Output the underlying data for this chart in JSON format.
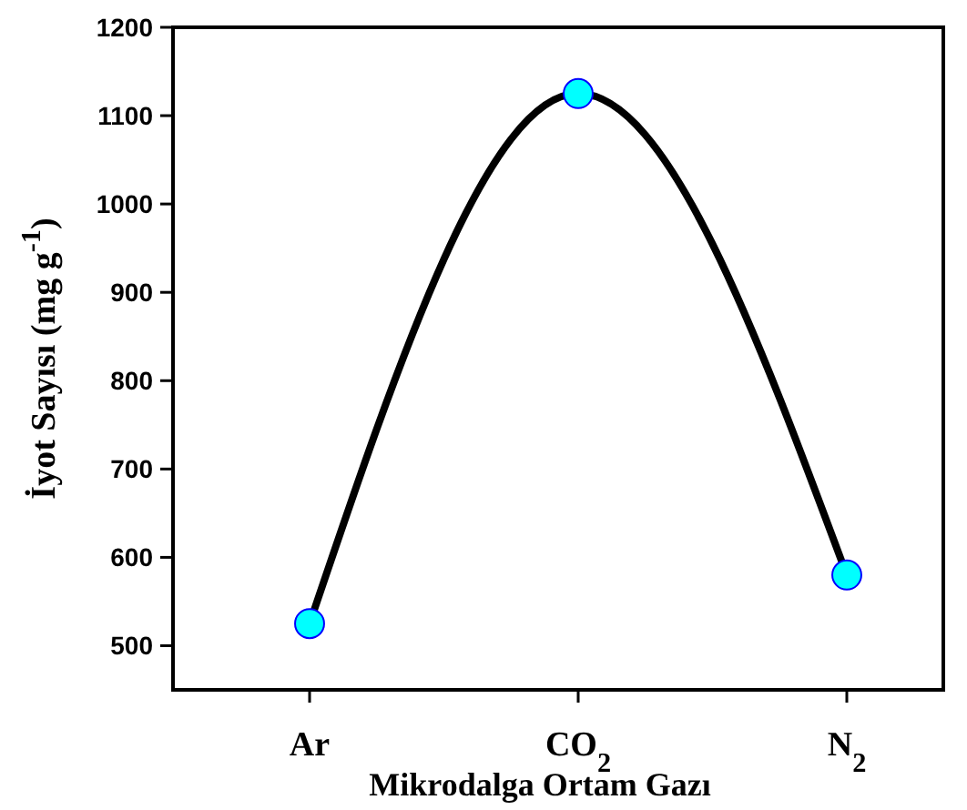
{
  "chart_data": {
    "type": "line",
    "xlabel": "Mikrodalga Ortam Gazı",
    "ylabel": "İyot Sayısı (mg g$^{-1}$)",
    "categories": [
      "Ar",
      "CO$_{2}$",
      "N$_{2}$"
    ],
    "series": [
      {
        "color": "#000000",
        "values": [
          525,
          1125,
          580
        ]
      }
    ],
    "ylim": [
      450,
      1200
    ],
    "yticks": [
      500,
      600,
      700,
      800,
      900,
      1000,
      1100,
      1200
    ],
    "marker": "circle"
  }
}
